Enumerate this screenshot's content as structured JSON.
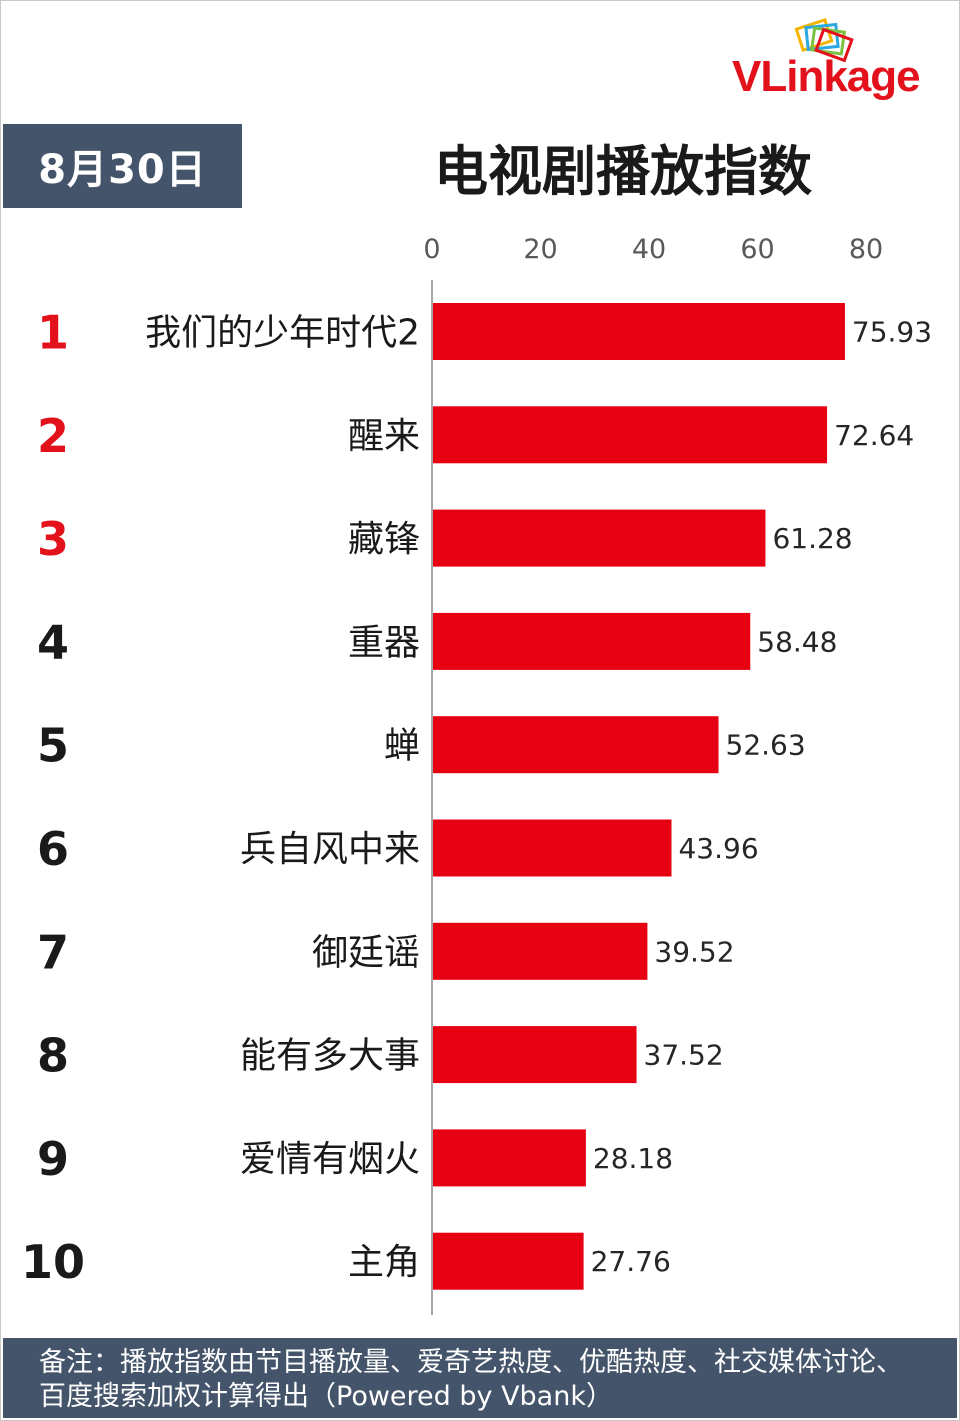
{
  "date_label": "8月30日",
  "logo": {
    "text_v": "VL",
    "text_rest": "inkage"
  },
  "footer_note": "备注：播放指数由节目播放量、爱奇艺热度、优酷热度、社交媒体讨论、百度搜索加权计算得出（Powered by Vbank）",
  "colors": {
    "bar": "#e60012",
    "top_rank": "#e3111b",
    "rank": "#1a1a1a",
    "header_bg": "#44546a"
  },
  "chart_data": {
    "type": "bar",
    "orientation": "horizontal",
    "title": "电视剧播放指数",
    "xlim": [
      0,
      80
    ],
    "x_ticks": [
      0,
      20,
      40,
      60,
      80
    ],
    "grid": false,
    "ranks": [
      "1",
      "2",
      "3",
      "4",
      "5",
      "6",
      "7",
      "8",
      "9",
      "10"
    ],
    "categories": [
      "我们的少年时代2",
      "醒来",
      "藏锋",
      "重器",
      "蝉",
      "兵自风中来",
      "御廷谣",
      "能有多大事",
      "爱情有烟火",
      "主角"
    ],
    "values": [
      75.93,
      72.64,
      61.28,
      58.48,
      52.63,
      43.96,
      39.52,
      37.52,
      28.18,
      27.76
    ]
  }
}
